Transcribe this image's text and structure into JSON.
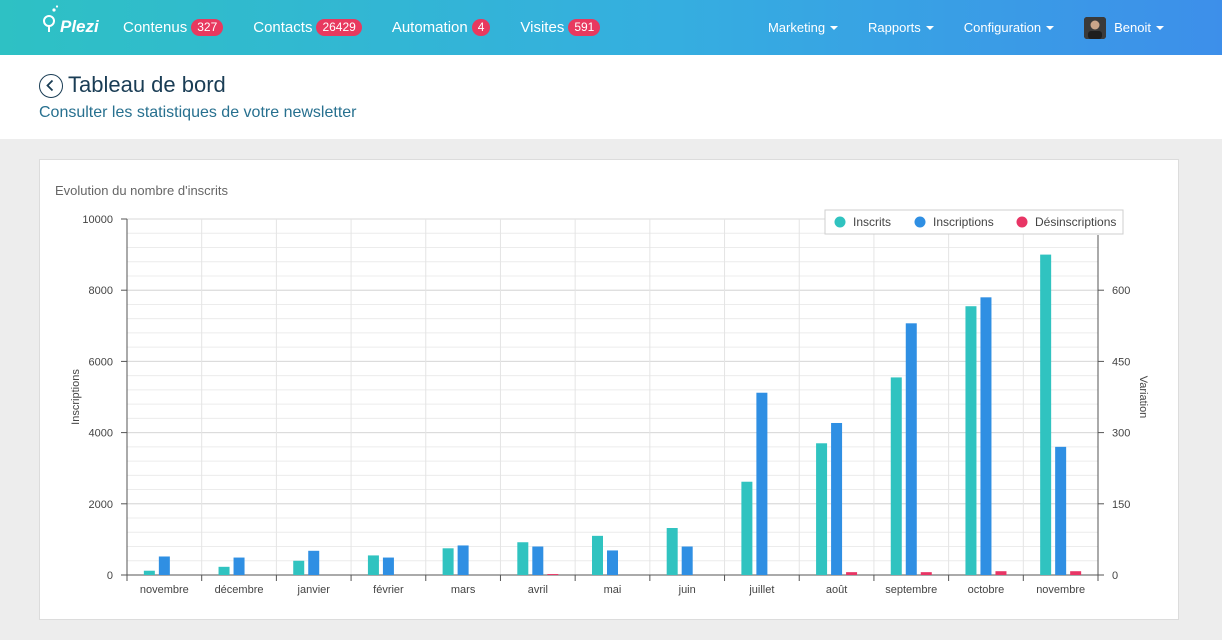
{
  "app": {
    "name": "Plezi"
  },
  "nav": {
    "main": [
      {
        "label": "Contenus",
        "badge": "327"
      },
      {
        "label": "Contacts",
        "badge": "26429"
      },
      {
        "label": "Automation",
        "badge": "4"
      },
      {
        "label": "Visites",
        "badge": "591"
      }
    ],
    "right": [
      {
        "label": "Marketing"
      },
      {
        "label": "Rapports"
      },
      {
        "label": "Configuration"
      }
    ],
    "user": {
      "name": "Benoit"
    }
  },
  "header": {
    "title": "Tableau de bord",
    "subtitle": "Consulter les statistiques de votre newsletter"
  },
  "panel": {
    "title": "Evolution du nombre d'inscrits"
  },
  "colors": {
    "inscrits": "#30c3c0",
    "inscriptions": "#2f8fe3",
    "desinscriptions": "#e83565"
  },
  "chart_data": {
    "type": "bar",
    "categories": [
      "novembre",
      "décembre",
      "janvier",
      "février",
      "mars",
      "avril",
      "mai",
      "juin",
      "juillet",
      "août",
      "septembre",
      "octobre",
      "novembre"
    ],
    "series": [
      {
        "name": "Inscrits",
        "axis": "left",
        "values": [
          120,
          230,
          400,
          550,
          750,
          920,
          1100,
          1320,
          2620,
          3700,
          5550,
          7550,
          9000
        ]
      },
      {
        "name": "Inscriptions",
        "axis": "left",
        "values": [
          520,
          490,
          680,
          490,
          830,
          800,
          690,
          800,
          5120,
          4270,
          7070,
          7800,
          3600
        ]
      },
      {
        "name": "Désinscriptions",
        "axis": "right",
        "values": [
          0,
          0,
          0,
          0,
          0,
          2,
          0,
          0,
          0,
          6,
          6,
          8,
          8
        ]
      }
    ],
    "ylabel": "Inscriptions",
    "y2label": "Variation",
    "ylim": [
      0,
      10000
    ],
    "y2lim": [
      0,
      750
    ],
    "yticks": [
      0,
      2000,
      4000,
      6000,
      8000,
      10000
    ],
    "y2ticks": [
      0,
      150,
      300,
      450,
      600
    ],
    "legend_position": "top-right"
  }
}
